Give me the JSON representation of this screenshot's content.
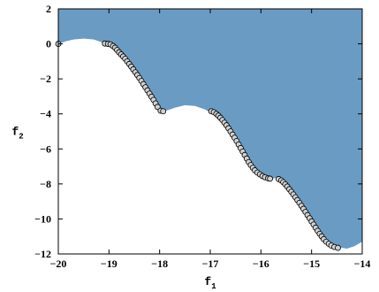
{
  "chart_data": {
    "type": "scatter",
    "title": "",
    "xlabel": "f",
    "xlabel_sub": "1",
    "ylabel": "f",
    "ylabel_sub": "2",
    "xlim": [
      -20,
      -14
    ],
    "ylim": [
      -12,
      2
    ],
    "xticks": [
      -20,
      -19,
      -18,
      -17,
      -16,
      -15,
      -14
    ],
    "yticks": [
      -12,
      -10,
      -8,
      -6,
      -4,
      -2,
      0,
      2
    ],
    "xtick_labels": [
      "−20",
      "−19",
      "−18",
      "−17",
      "−16",
      "−15",
      "−14"
    ],
    "ytick_labels": [
      "−12",
      "−10",
      "−8",
      "−6",
      "−4",
      "−2",
      "0",
      "2"
    ],
    "grid": false,
    "legend": false,
    "colors": {
      "region": "#6a9bc3",
      "marker_fill": "#d0d0d0",
      "marker_edge": "#000000"
    },
    "region_boundary": [
      [
        -20.0,
        0.0
      ],
      [
        -19.85,
        0.15
      ],
      [
        -19.7,
        0.25
      ],
      [
        -19.5,
        0.3
      ],
      [
        -19.3,
        0.25
      ],
      [
        -19.1,
        0.05
      ],
      [
        -18.9,
        -0.3
      ],
      [
        -18.7,
        -0.8
      ],
      [
        -18.5,
        -1.6
      ],
      [
        -18.3,
        -2.6
      ],
      [
        -18.15,
        -3.3
      ],
      [
        -18.0,
        -3.85
      ],
      [
        -17.85,
        -3.8
      ],
      [
        -17.7,
        -3.65
      ],
      [
        -17.5,
        -3.5
      ],
      [
        -17.3,
        -3.55
      ],
      [
        -17.1,
        -3.75
      ],
      [
        -16.9,
        -4.1
      ],
      [
        -16.7,
        -4.7
      ],
      [
        -16.5,
        -5.6
      ],
      [
        -16.3,
        -6.6
      ],
      [
        -16.1,
        -7.3
      ],
      [
        -15.9,
        -7.65
      ],
      [
        -15.75,
        -7.7
      ],
      [
        -15.65,
        -7.6
      ],
      [
        -15.55,
        -7.9
      ],
      [
        -15.3,
        -8.6
      ],
      [
        -15.1,
        -9.5
      ],
      [
        -14.9,
        -10.4
      ],
      [
        -14.7,
        -11.1
      ],
      [
        -14.5,
        -11.6
      ],
      [
        -14.3,
        -11.7
      ],
      [
        -14.15,
        -11.55
      ],
      [
        -14.0,
        -11.3
      ]
    ],
    "points": [
      [
        -20.0,
        0.0
      ],
      [
        -19.08,
        0.02
      ],
      [
        -19.02,
        0.0
      ],
      [
        -18.97,
        -0.03
      ],
      [
        -18.92,
        -0.12
      ],
      [
        -18.88,
        -0.22
      ],
      [
        -18.84,
        -0.35
      ],
      [
        -18.8,
        -0.48
      ],
      [
        -18.76,
        -0.6
      ],
      [
        -18.72,
        -0.72
      ],
      [
        -18.68,
        -0.85
      ],
      [
        -18.64,
        -1.0
      ],
      [
        -18.6,
        -1.15
      ],
      [
        -18.56,
        -1.3
      ],
      [
        -18.52,
        -1.46
      ],
      [
        -18.48,
        -1.62
      ],
      [
        -18.44,
        -1.78
      ],
      [
        -18.4,
        -1.95
      ],
      [
        -18.36,
        -2.12
      ],
      [
        -18.32,
        -2.3
      ],
      [
        -18.28,
        -2.48
      ],
      [
        -18.24,
        -2.66
      ],
      [
        -18.2,
        -2.84
      ],
      [
        -18.16,
        -3.02
      ],
      [
        -18.12,
        -3.2
      ],
      [
        -18.08,
        -3.4
      ],
      [
        -18.04,
        -3.6
      ],
      [
        -17.98,
        -3.82
      ],
      [
        -17.93,
        -3.85
      ],
      [
        -16.98,
        -3.85
      ],
      [
        -16.93,
        -3.9
      ],
      [
        -16.88,
        -4.0
      ],
      [
        -16.84,
        -4.1
      ],
      [
        -16.8,
        -4.22
      ],
      [
        -16.76,
        -4.35
      ],
      [
        -16.72,
        -4.5
      ],
      [
        -16.68,
        -4.65
      ],
      [
        -16.64,
        -4.82
      ],
      [
        -16.6,
        -5.0
      ],
      [
        -16.56,
        -5.18
      ],
      [
        -16.52,
        -5.36
      ],
      [
        -16.48,
        -5.55
      ],
      [
        -16.44,
        -5.75
      ],
      [
        -16.4,
        -5.95
      ],
      [
        -16.36,
        -6.15
      ],
      [
        -16.32,
        -6.35
      ],
      [
        -16.28,
        -6.55
      ],
      [
        -16.24,
        -6.75
      ],
      [
        -16.2,
        -6.92
      ],
      [
        -16.16,
        -7.08
      ],
      [
        -16.12,
        -7.22
      ],
      [
        -16.07,
        -7.35
      ],
      [
        -16.02,
        -7.45
      ],
      [
        -15.97,
        -7.55
      ],
      [
        -15.92,
        -7.62
      ],
      [
        -15.86,
        -7.68
      ],
      [
        -15.82,
        -7.7
      ],
      [
        -15.65,
        -7.72
      ],
      [
        -15.6,
        -7.8
      ],
      [
        -15.56,
        -7.9
      ],
      [
        -15.52,
        -8.02
      ],
      [
        -15.48,
        -8.15
      ],
      [
        -15.44,
        -8.3
      ],
      [
        -15.4,
        -8.45
      ],
      [
        -15.36,
        -8.6
      ],
      [
        -15.32,
        -8.76
      ],
      [
        -15.28,
        -8.92
      ],
      [
        -15.24,
        -9.08
      ],
      [
        -15.2,
        -9.25
      ],
      [
        -15.16,
        -9.42
      ],
      [
        -15.12,
        -9.6
      ],
      [
        -15.08,
        -9.78
      ],
      [
        -15.04,
        -9.96
      ],
      [
        -15.0,
        -10.14
      ],
      [
        -14.96,
        -10.32
      ],
      [
        -14.92,
        -10.5
      ],
      [
        -14.88,
        -10.68
      ],
      [
        -14.84,
        -10.85
      ],
      [
        -14.8,
        -11.0
      ],
      [
        -14.76,
        -11.15
      ],
      [
        -14.71,
        -11.3
      ],
      [
        -14.66,
        -11.42
      ],
      [
        -14.61,
        -11.52
      ],
      [
        -14.55,
        -11.6
      ],
      [
        -14.48,
        -11.65
      ]
    ]
  }
}
